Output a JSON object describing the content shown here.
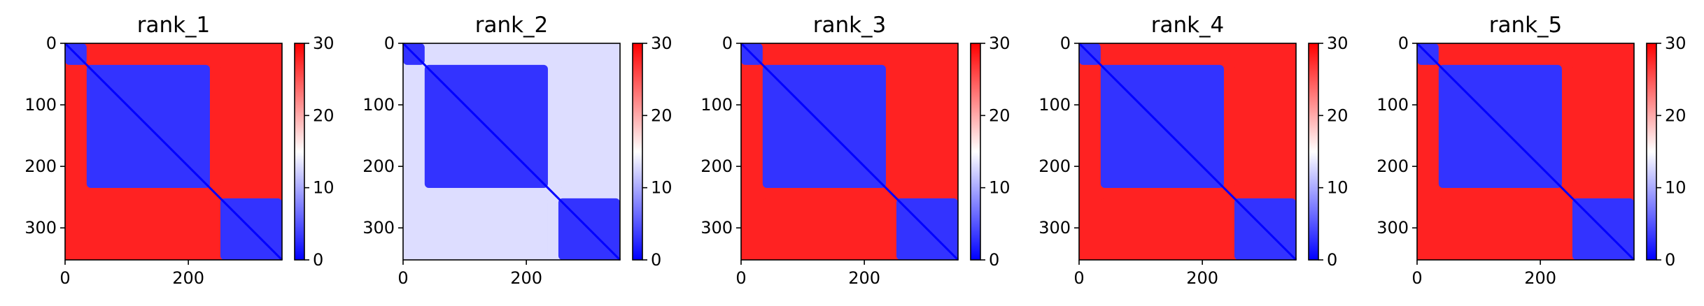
{
  "chart_data": [
    {
      "type": "heatmap",
      "title": "rank_1",
      "xticks": [
        0,
        200
      ],
      "yticks": [
        0,
        100,
        200,
        300
      ],
      "xlim": [
        0,
        352
      ],
      "ylim": [
        352,
        0
      ],
      "colorbar": {
        "ticks": [
          0,
          10,
          20,
          30
        ],
        "range": [
          0,
          30
        ],
        "colors": [
          "#0000ff",
          "#ffffff",
          "#ff0000"
        ]
      },
      "blocks": [
        {
          "x": [
            0,
            35
          ],
          "y": [
            0,
            35
          ],
          "value": 3
        },
        {
          "x": [
            35,
            235
          ],
          "y": [
            35,
            235
          ],
          "value": 3
        },
        {
          "x": [
            252,
            352
          ],
          "y": [
            252,
            352
          ],
          "value": 3
        },
        {
          "x": [
            35,
            235
          ],
          "y": [
            252,
            352
          ],
          "value": 28
        },
        {
          "x": [
            252,
            352
          ],
          "y": [
            35,
            235
          ],
          "value": 28
        }
      ],
      "diagonal": 0
    },
    {
      "type": "heatmap",
      "title": "rank_2",
      "xticks": [
        0,
        200
      ],
      "yticks": [
        0,
        100,
        200,
        300
      ],
      "xlim": [
        0,
        352
      ],
      "ylim": [
        352,
        0
      ],
      "colorbar": {
        "ticks": [
          0,
          10,
          20,
          30
        ],
        "range": [
          0,
          30
        ],
        "colors": [
          "#0000ff",
          "#ffffff",
          "#ff0000"
        ]
      },
      "blocks": [
        {
          "x": [
            0,
            35
          ],
          "y": [
            0,
            35
          ],
          "value": 3
        },
        {
          "x": [
            35,
            235
          ],
          "y": [
            35,
            235
          ],
          "value": 3
        },
        {
          "x": [
            252,
            352
          ],
          "y": [
            252,
            352
          ],
          "value": 3
        },
        {
          "x": [
            35,
            235
          ],
          "y": [
            252,
            352
          ],
          "value": 13
        },
        {
          "x": [
            252,
            352
          ],
          "y": [
            35,
            235
          ],
          "value": 13
        }
      ],
      "diagonal": 0
    },
    {
      "type": "heatmap",
      "title": "rank_3",
      "xticks": [
        0,
        200
      ],
      "yticks": [
        0,
        100,
        200,
        300
      ],
      "xlim": [
        0,
        352
      ],
      "ylim": [
        352,
        0
      ],
      "colorbar": {
        "ticks": [
          0,
          10,
          20,
          30
        ],
        "range": [
          0,
          30
        ],
        "colors": [
          "#0000ff",
          "#ffffff",
          "#ff0000"
        ]
      },
      "blocks": [
        {
          "x": [
            0,
            35
          ],
          "y": [
            0,
            35
          ],
          "value": 3
        },
        {
          "x": [
            35,
            235
          ],
          "y": [
            35,
            235
          ],
          "value": 3
        },
        {
          "x": [
            252,
            352
          ],
          "y": [
            252,
            352
          ],
          "value": 3
        },
        {
          "x": [
            35,
            235
          ],
          "y": [
            252,
            352
          ],
          "value": 28
        },
        {
          "x": [
            252,
            352
          ],
          "y": [
            35,
            235
          ],
          "value": 28
        }
      ],
      "diagonal": 0
    },
    {
      "type": "heatmap",
      "title": "rank_4",
      "xticks": [
        0,
        200
      ],
      "yticks": [
        0,
        100,
        200,
        300
      ],
      "xlim": [
        0,
        352
      ],
      "ylim": [
        352,
        0
      ],
      "colorbar": {
        "ticks": [
          0,
          10,
          20,
          30
        ],
        "range": [
          0,
          30
        ],
        "colors": [
          "#0000ff",
          "#ffffff",
          "#ff0000"
        ]
      },
      "blocks": [
        {
          "x": [
            0,
            35
          ],
          "y": [
            0,
            35
          ],
          "value": 3
        },
        {
          "x": [
            35,
            235
          ],
          "y": [
            35,
            235
          ],
          "value": 3
        },
        {
          "x": [
            252,
            352
          ],
          "y": [
            252,
            352
          ],
          "value": 3
        },
        {
          "x": [
            35,
            235
          ],
          "y": [
            252,
            352
          ],
          "value": 28
        },
        {
          "x": [
            252,
            352
          ],
          "y": [
            35,
            235
          ],
          "value": 28
        }
      ],
      "diagonal": 0
    },
    {
      "type": "heatmap",
      "title": "rank_5",
      "xticks": [
        0,
        200
      ],
      "yticks": [
        0,
        100,
        200,
        300
      ],
      "xlim": [
        0,
        352
      ],
      "ylim": [
        352,
        0
      ],
      "colorbar": {
        "ticks": [
          0,
          10,
          20,
          30
        ],
        "range": [
          0,
          30
        ],
        "colors": [
          "#0000ff",
          "#ffffff",
          "#ff0000"
        ]
      },
      "blocks": [
        {
          "x": [
            0,
            35
          ],
          "y": [
            0,
            35
          ],
          "value": 3
        },
        {
          "x": [
            35,
            235
          ],
          "y": [
            35,
            235
          ],
          "value": 3
        },
        {
          "x": [
            252,
            352
          ],
          "y": [
            252,
            352
          ],
          "value": 3
        },
        {
          "x": [
            35,
            235
          ],
          "y": [
            252,
            352
          ],
          "value": 28
        },
        {
          "x": [
            252,
            352
          ],
          "y": [
            35,
            235
          ],
          "value": 28
        }
      ],
      "diagonal": 0
    }
  ]
}
